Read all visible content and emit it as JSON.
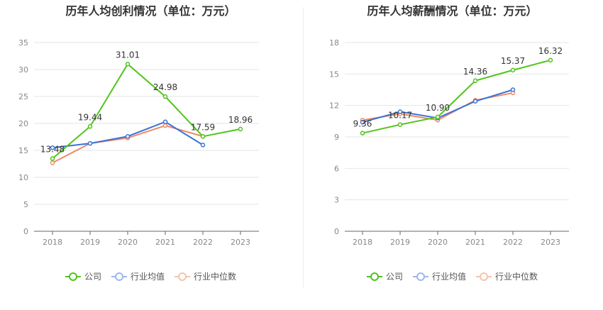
{
  "colors": {
    "company": "#52c41a",
    "avg": "#3b73d6",
    "median": "#ef8a62",
    "grid": "#e6e6e6",
    "axis": "#666666",
    "label": "#333333"
  },
  "chart_data": [
    {
      "type": "line",
      "title": "历年人均创利情况（单位：万元）",
      "categories": [
        "2018",
        "2019",
        "2020",
        "2021",
        "2022",
        "2023"
      ],
      "ylim": [
        0,
        35
      ],
      "yticks": [
        0,
        5,
        10,
        15,
        20,
        25,
        30,
        35
      ],
      "grid": true,
      "legend_position": "bottom",
      "series": [
        {
          "name": "公司",
          "key": "company",
          "values": [
            13.48,
            19.44,
            31.01,
            24.98,
            17.59,
            18.96
          ],
          "labels": [
            "13.48",
            "19.44",
            "31.01",
            "24.98",
            "17.59",
            "18.96"
          ]
        },
        {
          "name": "行业均值",
          "key": "avg",
          "values": [
            15.5,
            16.3,
            17.6,
            20.3,
            16.0,
            null
          ]
        },
        {
          "name": "行业中位数",
          "key": "median",
          "values": [
            12.7,
            16.3,
            17.3,
            19.6,
            17.6,
            null
          ]
        }
      ]
    },
    {
      "type": "line",
      "title": "历年人均薪酬情况（单位：万元）",
      "categories": [
        "2018",
        "2019",
        "2020",
        "2021",
        "2022",
        "2023"
      ],
      "ylim": [
        0,
        18
      ],
      "yticks": [
        0,
        3,
        6,
        9,
        12,
        15,
        18
      ],
      "grid": true,
      "legend_position": "bottom",
      "series": [
        {
          "name": "公司",
          "key": "company",
          "values": [
            9.36,
            10.17,
            10.9,
            14.36,
            15.37,
            16.32
          ],
          "labels": [
            "9.36",
            "10.17",
            "10.90",
            "14.36",
            "15.37",
            "16.32"
          ]
        },
        {
          "name": "行业均值",
          "key": "avg",
          "values": [
            10.4,
            11.4,
            10.8,
            12.4,
            13.5,
            null
          ]
        },
        {
          "name": "行业中位数",
          "key": "median",
          "values": [
            10.6,
            11.2,
            10.6,
            12.5,
            13.2,
            null
          ]
        }
      ]
    }
  ]
}
